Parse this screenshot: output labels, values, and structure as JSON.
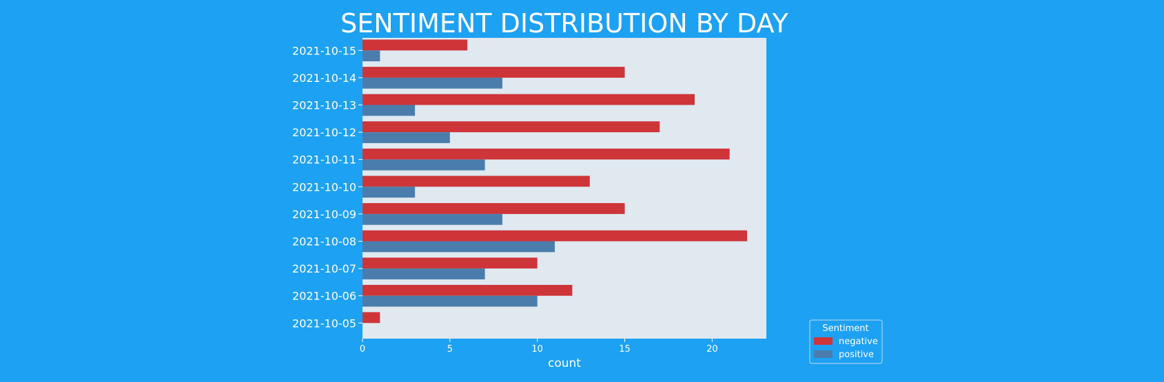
{
  "chart_data": {
    "type": "bar",
    "orientation": "horizontal",
    "title": "SENTIMENT DISTRIBUTION BY DAY",
    "xlabel": "count",
    "ylabel": "",
    "xlim": [
      0,
      23.1
    ],
    "xticks": [
      0,
      5,
      10,
      15,
      20
    ],
    "categories": [
      "2021-10-15",
      "2021-10-14",
      "2021-10-13",
      "2021-10-12",
      "2021-10-11",
      "2021-10-10",
      "2021-10-09",
      "2021-10-08",
      "2021-10-07",
      "2021-10-06",
      "2021-10-05"
    ],
    "series": [
      {
        "name": "negative",
        "color": "#cd3539",
        "values": [
          6,
          15,
          19,
          17,
          21,
          13,
          15,
          22,
          10,
          12,
          1
        ]
      },
      {
        "name": "positive",
        "color": "#4a7dac",
        "values": [
          1,
          8,
          3,
          5,
          7,
          3,
          8,
          11,
          7,
          10,
          0
        ]
      }
    ],
    "legend": {
      "title": "Sentiment",
      "placement": "bottom-right outside"
    },
    "grid": false,
    "colors": {
      "background": "#1da1f2",
      "plot_area": "#e0e8f0",
      "text": "#ffffff"
    }
  }
}
